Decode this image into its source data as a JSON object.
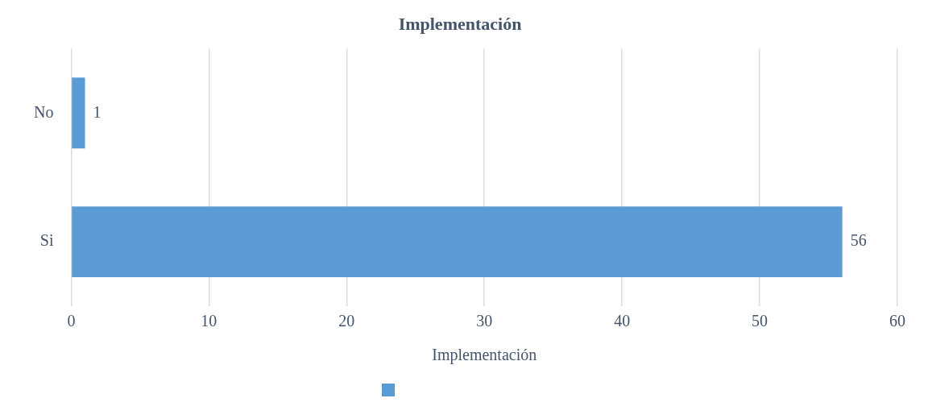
{
  "chart_data": {
    "type": "bar",
    "orientation": "horizontal",
    "title": "Implementación",
    "xlabel": "Implementación",
    "categories": [
      "No",
      "Si"
    ],
    "values": [
      1,
      56
    ],
    "color": "#5b9bd5",
    "xlim": [
      0,
      60
    ],
    "xticks": [
      0,
      10,
      20,
      30,
      40,
      50,
      60
    ],
    "grid": "x",
    "data_labels": true
  }
}
